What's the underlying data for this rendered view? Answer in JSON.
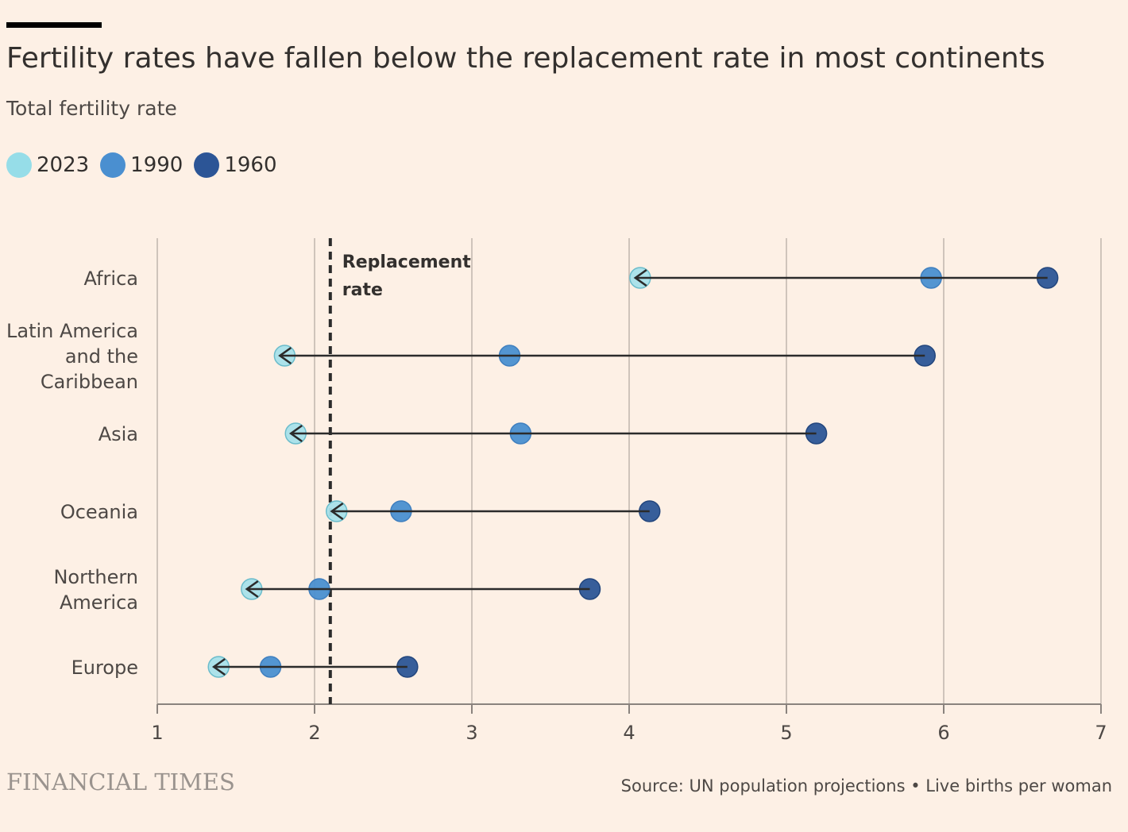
{
  "title": "Fertility rates have fallen below the replacement rate in most continents",
  "subtitle": "Total fertility rate",
  "legend": [
    {
      "label": "2023",
      "color": "#96dde8"
    },
    {
      "label": "1990",
      "color": "#4a8fd0"
    },
    {
      "label": "1960",
      "color": "#2c5596"
    }
  ],
  "brand": "FINANCIAL TIMES",
  "source": "Source: UN population projections • Live births per woman",
  "chart_data": {
    "type": "dumbbell",
    "xlim": [
      1,
      7
    ],
    "x_ticks": [
      "1",
      "2",
      "3",
      "4",
      "5",
      "6",
      "7"
    ],
    "grid": "vertical",
    "categories": [
      {
        "lines": [
          "Africa"
        ],
        "v2023": 4.07,
        "v1990": 5.92,
        "v1960": 6.66
      },
      {
        "lines": [
          "Latin America",
          "and the",
          "Caribbean"
        ],
        "v2023": 1.81,
        "v1990": 3.24,
        "v1960": 5.88
      },
      {
        "lines": [
          "Asia"
        ],
        "v2023": 1.88,
        "v1990": 3.31,
        "v1960": 5.19
      },
      {
        "lines": [
          "Oceania"
        ],
        "v2023": 2.14,
        "v1990": 2.55,
        "v1960": 4.13
      },
      {
        "lines": [
          "Northern",
          "America"
        ],
        "v2023": 1.6,
        "v1990": 2.03,
        "v1960": 3.75
      },
      {
        "lines": [
          "Europe"
        ],
        "v2023": 1.39,
        "v1990": 1.72,
        "v1960": 2.59
      }
    ],
    "reference_line": {
      "value": 2.1,
      "label_lines": [
        "Replacement",
        "rate"
      ]
    }
  }
}
